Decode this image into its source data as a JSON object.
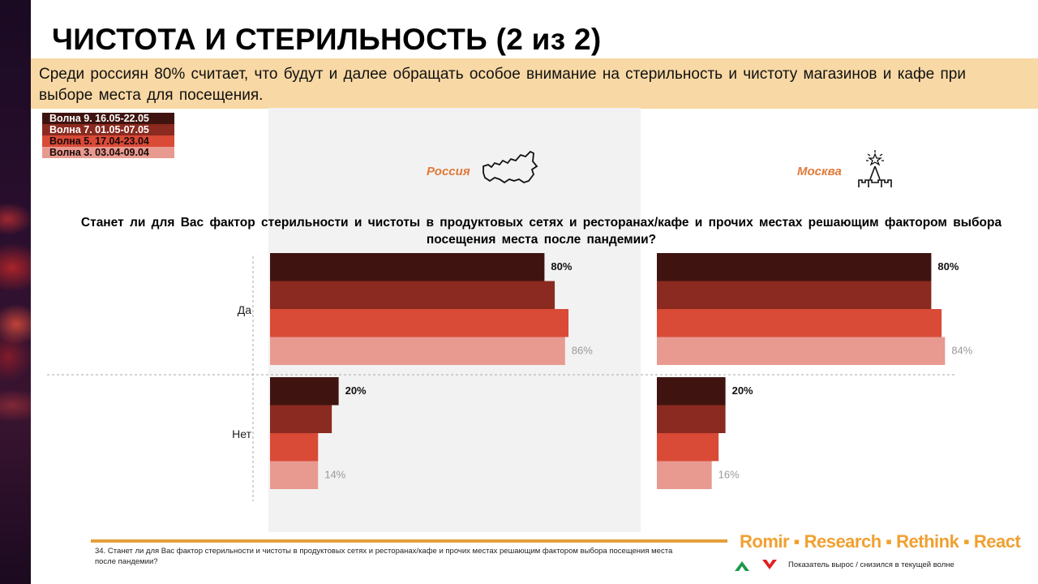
{
  "title": "ЧИСТОТА И СТЕРИЛЬНОСТЬ (2 из 2)",
  "banner": "Среди россиян 80% считает, что будут и далее обращать особое внимание  на стерильность и чистоту магазинов и кафе при выборе места для посещения.",
  "legend": [
    {
      "label": "Волна 9. 16.05-22.05",
      "color": "#3f1410",
      "text_color": "#ffffff"
    },
    {
      "label": "Волна 7. 01.05-07.05",
      "color": "#8b2a20",
      "text_color": "#ffffff"
    },
    {
      "label": "Волна 5. 17.04-23.04",
      "color": "#d94a37",
      "text_color": "#1a0a0a"
    },
    {
      "label": "Волна 3. 03.04-09.04",
      "color": "#e89a90",
      "text_color": "#1a0a0a"
    }
  ],
  "regions": {
    "russia": "Россия",
    "moscow": "Москва"
  },
  "question": "Станет ли для Вас фактор стерильности и чистоты в продуктовых сетях и ресторанах/кафе и прочих местах решающим фактором выбора посещения места после пандемии?",
  "chart_data": {
    "type": "bar",
    "orientation": "horizontal",
    "categories": [
      "Да",
      "Нет"
    ],
    "unit": "%",
    "xlim": [
      0,
      100
    ],
    "panels": [
      {
        "name": "Россия",
        "series": [
          {
            "name": "Волна 9. 16.05-22.05",
            "values": [
              80,
              20
            ],
            "labels": [
              "80%",
              "20%"
            ]
          },
          {
            "name": "Волна 7. 01.05-07.05",
            "values": [
              83,
              18
            ]
          },
          {
            "name": "Волна 5. 17.04-23.04",
            "values": [
              87,
              14
            ]
          },
          {
            "name": "Волна 3. 03.04-09.04",
            "values": [
              86,
              14
            ],
            "labels": [
              "86%",
              "14%"
            ]
          }
        ]
      },
      {
        "name": "Москва",
        "series": [
          {
            "name": "Волна 9. 16.05-22.05",
            "values": [
              80,
              20
            ],
            "labels": [
              "80%",
              "20%"
            ]
          },
          {
            "name": "Волна 7. 01.05-07.05",
            "values": [
              80,
              20
            ]
          },
          {
            "name": "Волна 5. 17.04-23.04",
            "values": [
              83,
              18
            ]
          },
          {
            "name": "Волна 3. 03.04-09.04",
            "values": [
              84,
              16
            ],
            "labels": [
              "84%",
              "16%"
            ]
          }
        ]
      }
    ]
  },
  "footnote": "34. Станет ли для Вас фактор стерильности и чистоты в продуктовых сетях и ресторанах/кафе и прочих местах решающим фактором выбора посещения места после пандемии?",
  "brand": "Romir ▪ Research ▪ Rethink ▪ React",
  "hint": "Показатель вырос / снизился в текущей волне",
  "colors": {
    "up": "#1a9a4a",
    "down": "#e02020",
    "accent": "#f0a030"
  }
}
